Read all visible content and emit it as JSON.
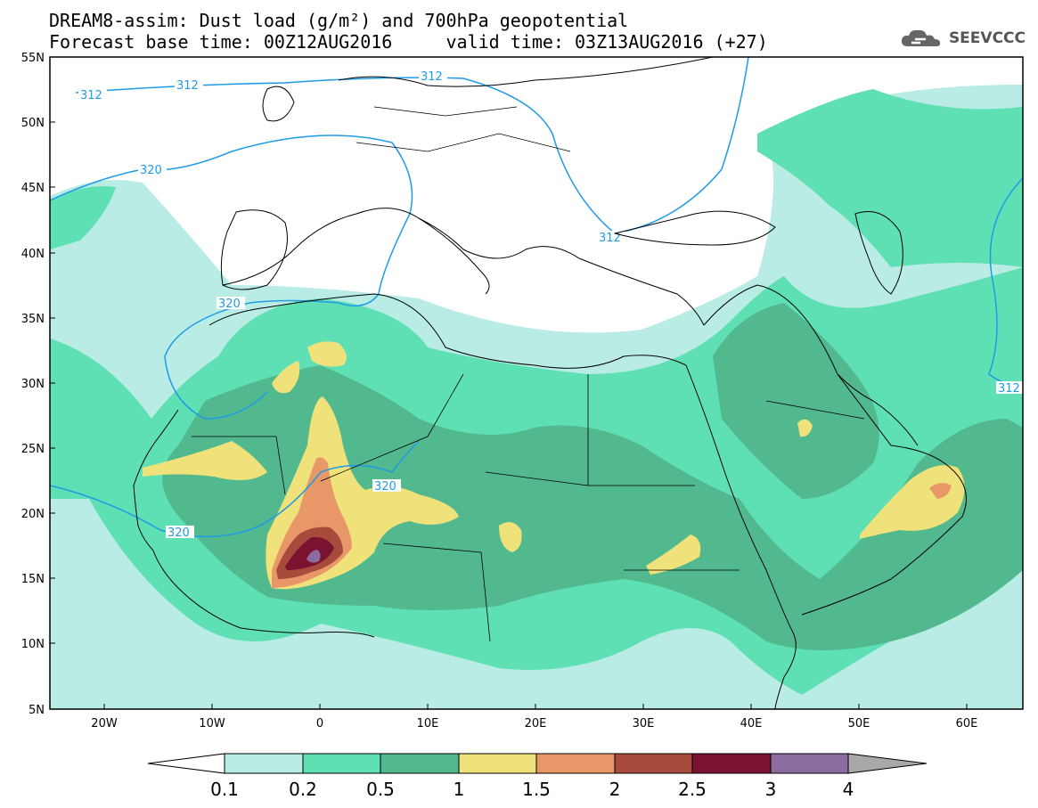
{
  "header": {
    "title_line1": "DREAM8-assim: Dust load (g/m²) and 700hPa geopotential",
    "title_line2": "Forecast base time: 00Z12AUG2016     valid time: 03Z13AUG2016 (+27)",
    "brand": "SEEVCCC",
    "brand_icon": "cloud-logo-icon"
  },
  "map": {
    "lat_ticks": [
      "55N",
      "50N",
      "45N",
      "40N",
      "35N",
      "30N",
      "25N",
      "20N",
      "15N",
      "10N",
      "5N"
    ],
    "lon_ticks": [
      "20W",
      "10W",
      "0",
      "10E",
      "20E",
      "30E",
      "40E",
      "50E",
      "60E"
    ],
    "lon_range": [
      -25,
      65
    ],
    "lat_range": [
      5,
      55
    ],
    "contour_labels": [
      "312",
      "312",
      "312",
      "312",
      "312",
      "320",
      "320",
      "320",
      "320"
    ],
    "contour_color": "#1f9be6"
  },
  "colorbar": {
    "labels": [
      "0.1",
      "0.2",
      "0.5",
      "1",
      "1.5",
      "2",
      "2.5",
      "3",
      "4"
    ],
    "colors": [
      "#b8ece4",
      "#5ee0b4",
      "#52b88e",
      "#f0e27a",
      "#e89868",
      "#a84a3c",
      "#7a1230",
      "#8c6ca0",
      "#a8a8a8"
    ]
  }
}
